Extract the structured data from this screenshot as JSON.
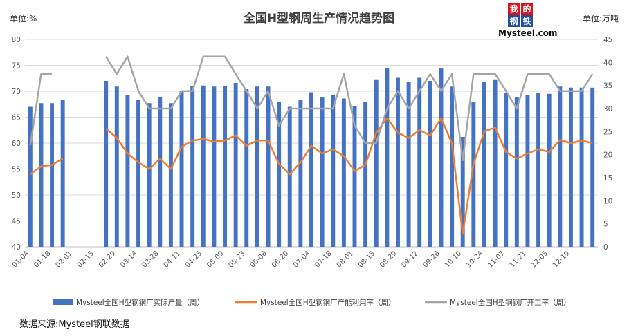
{
  "chart_data": {
    "type": "bar+line",
    "title": "全国H型钢周生产情况趋势图",
    "left_unit_label": "单位:%",
    "right_unit_label": "单位:万吨",
    "left_axis": {
      "min": 40,
      "max": 80,
      "step": 5
    },
    "right_axis": {
      "min": 0,
      "max": 45,
      "step": 5
    },
    "x_tick_labels": [
      "01-04",
      "01-18",
      "02-01",
      "02-15",
      "02-29",
      "03-14",
      "03-28",
      "04-11",
      "04-25",
      "05-09",
      "05-23",
      "06-06",
      "06-20",
      "07-04",
      "07-18",
      "08-01",
      "08-15",
      "08-29",
      "09-12",
      "09-26",
      "10-10",
      "10-24",
      "11-07",
      "11-21",
      "12-05",
      "12-19"
    ],
    "grid": true,
    "legend_position": "bottom",
    "series": [
      {
        "name": "Mysteel全国H型钢钢厂实际产量（周）",
        "type": "bar",
        "axis": "left",
        "color": "#4472C4",
        "values": [
          67,
          67.7,
          67.7,
          68.4,
          null,
          null,
          null,
          72,
          70.9,
          69.3,
          68.3,
          67.7,
          68.9,
          67.7,
          70.1,
          71,
          71.1,
          70.9,
          71,
          71.6,
          70.4,
          70.9,
          70.9,
          68,
          67,
          68.4,
          69.8,
          68.9,
          69.3,
          68.6,
          67.1,
          68,
          72.3,
          74.5,
          72.6,
          71.8,
          72.6,
          72,
          74.5,
          70.9,
          61.2,
          68,
          71.8,
          72.3,
          69.7,
          68.9,
          69.3,
          69.7,
          69.5,
          70.9,
          70.7,
          70.7,
          70.7
        ]
      },
      {
        "name": "Mysteel全国H型钢钢厂产能利用率（周）",
        "type": "line",
        "axis": "left",
        "color": "#ED7D31",
        "values": [
          54,
          55.5,
          55.8,
          57,
          null,
          null,
          null,
          62.8,
          61,
          58,
          56.3,
          55,
          57,
          55,
          59.3,
          60.5,
          60.8,
          60.3,
          60.5,
          61.5,
          59.5,
          60.5,
          60.5,
          56,
          54,
          56.3,
          59.5,
          58,
          58.8,
          57.5,
          54.6,
          55.8,
          62,
          64.8,
          62,
          61,
          62.5,
          61.5,
          64.8,
          60,
          42.5,
          56,
          62.3,
          63,
          58.3,
          57,
          58,
          58.8,
          58.3,
          60.6,
          60,
          60.5,
          60
        ]
      },
      {
        "name": "Mysteel全国H型钢钢厂开工率（周）",
        "type": "line",
        "axis": "right",
        "color": "#A5A5A5",
        "values": [
          22,
          37.5,
          37.5,
          null,
          null,
          null,
          null,
          41.3,
          37.5,
          41.3,
          33.8,
          30,
          30,
          30,
          33.8,
          33.8,
          41.3,
          41.3,
          41.3,
          37.5,
          33.8,
          30,
          33.8,
          26.3,
          30,
          30,
          30,
          30,
          30,
          37.5,
          26.3,
          22.5,
          22.5,
          30,
          33.8,
          30,
          33.8,
          37.5,
          33.8,
          37.5,
          18.8,
          37.5,
          37.5,
          37.5,
          33.8,
          30,
          37.5,
          37.5,
          37.5,
          33.8,
          33.8,
          33.8,
          37.5
        ]
      }
    ]
  },
  "logo": {
    "chars": [
      "我",
      "的",
      "钢",
      "铁"
    ],
    "brand": "Mysteel.com"
  },
  "source_text": "数据来源:Mysteel钢联数据"
}
